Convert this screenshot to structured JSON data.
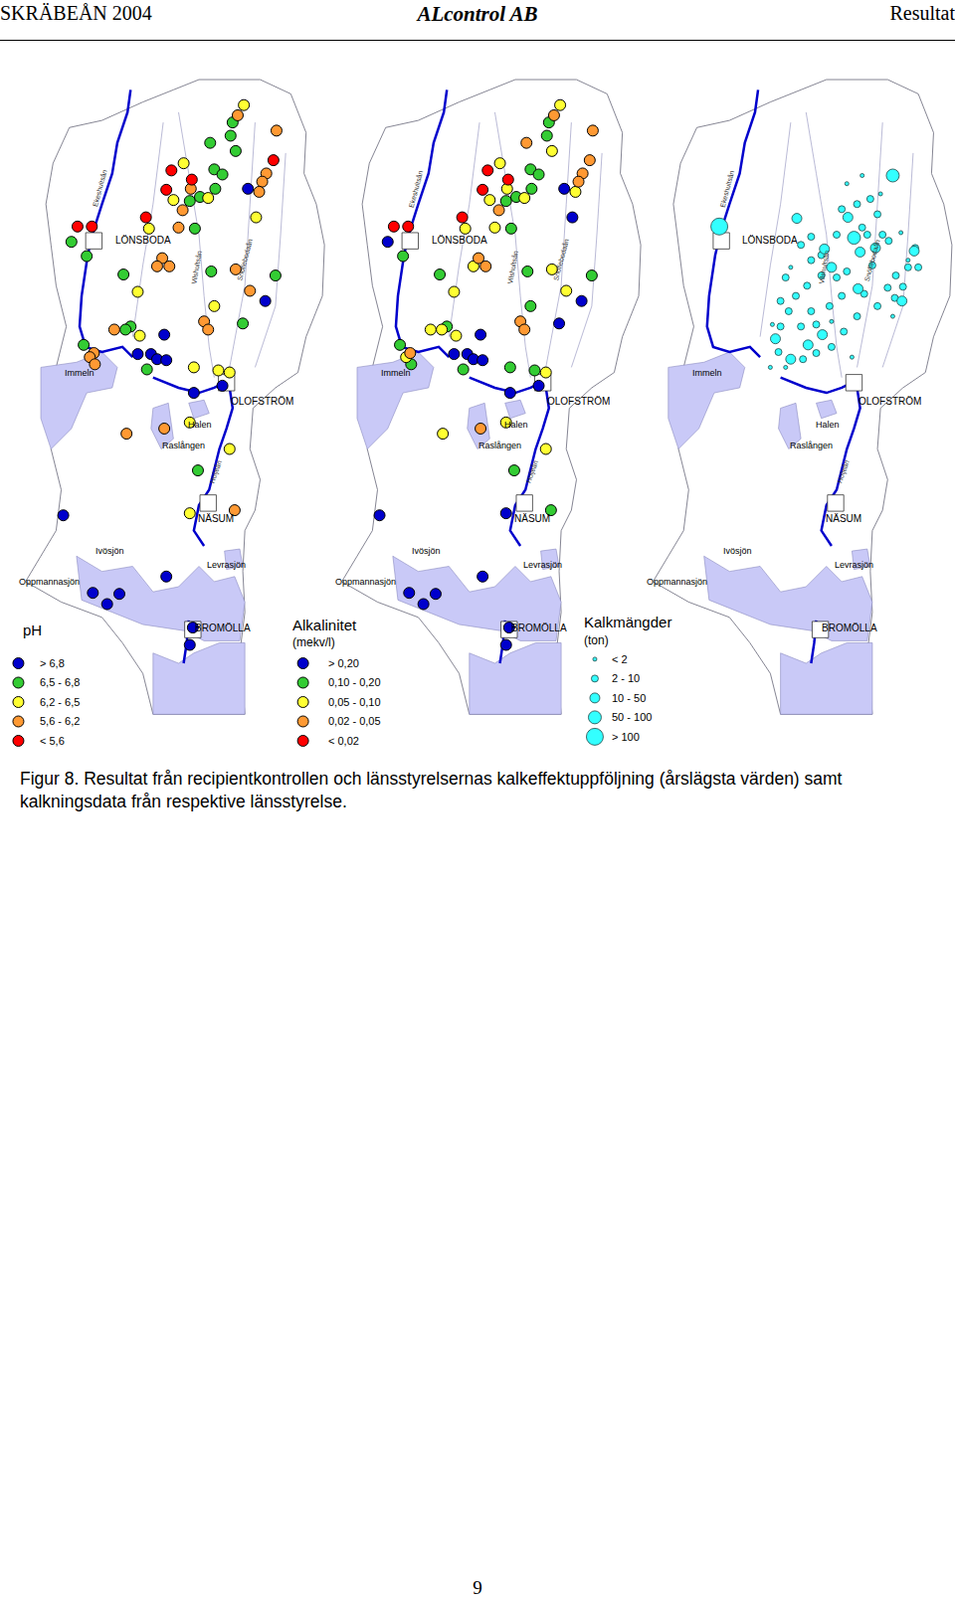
{
  "header": {
    "left": "SKRÄBEÅN 2004",
    "center": "ALcontrol AB",
    "right": "Resultat"
  },
  "map": {
    "xlim": [
      25,
      320
    ],
    "ylim": [
      720,
      60
    ],
    "places": [
      "LÖNSBODA",
      "OLOFSTRÖM",
      "NÄSUM",
      "BROMÖLLA",
      "Immeln",
      "Halen",
      "Raslången",
      "Ivösjön",
      "Levrasjön",
      "Oppmannasjön"
    ],
    "rivers": [
      "Ekeshultsån",
      "Vilshultsån",
      "Snöflebodaån",
      "Holjeån"
    ]
  },
  "chart_data": [
    {
      "type": "scatter",
      "title": "pH",
      "marker": "circle",
      "series": [
        {
          "name": "> 6,8",
          "color": "#0000cc",
          "x": [
            243,
            260,
            161,
            135,
            148,
            154,
            163,
            218,
            190,
            62,
            163,
            91,
            117,
            105,
            189,
            186
          ],
          "y": [
            185,
            295,
            328,
            347,
            347,
            352,
            353,
            378,
            385,
            505,
            565,
            581,
            582,
            592,
            615,
            632
          ]
        },
        {
          "name": "6,5 - 6,8",
          "color": "#33cc33",
          "x": [
            228,
            226,
            206,
            231,
            210,
            218,
            211,
            186,
            196,
            191,
            70,
            85,
            207,
            270,
            121,
            238,
            128,
            123,
            82,
            144,
            194
          ],
          "y": [
            120,
            133,
            140,
            148,
            166,
            171,
            185,
            197,
            193,
            224,
            237,
            251,
            266,
            270,
            269,
            317,
            320,
            323,
            338,
            362,
            461
          ]
        },
        {
          "name": "6,2 - 6,5",
          "color": "#ffff33",
          "x": [
            239,
            180,
            170,
            204,
            146,
            251,
            135,
            210,
            137,
            190,
            214,
            225,
            186,
            225,
            186
          ],
          "y": [
            103,
            160,
            196,
            194,
            224,
            213,
            286,
            300,
            329,
            360,
            363,
            365,
            414,
            440,
            503
          ]
        },
        {
          "name": "5,6 - 6,2",
          "color": "#ff9933",
          "x": [
            233,
            271,
            261,
            257,
            187,
            254,
            179,
            175,
            159,
            166,
            154,
            231,
            245,
            112,
            200,
            204,
            92,
            88,
            93,
            124,
            161,
            230
          ],
          "y": [
            113,
            128,
            170,
            178,
            185,
            188,
            206,
            223,
            253,
            261,
            261,
            264,
            285,
            323,
            315,
            323,
            346,
            350,
            357,
            425,
            420,
            500
          ]
        },
        {
          "name": "< 5,6",
          "color": "#ff0000",
          "x": [
            268,
            168,
            188,
            163,
            143,
            76,
            90
          ],
          "y": [
            157,
            167,
            176,
            186,
            213,
            222,
            222
          ]
        }
      ]
    },
    {
      "type": "scatter",
      "title": "Alkalinitet",
      "unit": "(mekv/l)",
      "marker": "circle",
      "series": [
        {
          "name": "> 0,20",
          "color": "#0000cc",
          "x": [
            243,
            251,
            70,
            260,
            238,
            161,
            135,
            148,
            154,
            163,
            218,
            190,
            186,
            62,
            163,
            91,
            117,
            105,
            189,
            186
          ],
          "y": [
            185,
            213,
            237,
            295,
            317,
            328,
            347,
            347,
            352,
            353,
            378,
            385,
            503,
            505,
            565,
            581,
            582,
            592,
            615,
            632
          ]
        },
        {
          "name": "0,10 - 0,20",
          "color": "#33cc33",
          "x": [
            228,
            226,
            210,
            218,
            211,
            186,
            196,
            191,
            85,
            207,
            270,
            121,
            210,
            128,
            82,
            93,
            144,
            190,
            214,
            194,
            230
          ],
          "y": [
            120,
            133,
            166,
            171,
            185,
            197,
            193,
            224,
            251,
            266,
            270,
            269,
            300,
            320,
            338,
            357,
            362,
            360,
            363,
            461,
            500
          ]
        },
        {
          "name": "0,05 - 0,10",
          "color": "#ffff33",
          "x": [
            239,
            231,
            180,
            187,
            254,
            170,
            204,
            146,
            175,
            154,
            231,
            135,
            245,
            112,
            123,
            137,
            88,
            225,
            124,
            186,
            225
          ],
          "y": [
            103,
            148,
            160,
            185,
            188,
            196,
            194,
            224,
            223,
            261,
            264,
            286,
            285,
            323,
            323,
            329,
            350,
            365,
            425,
            414,
            440
          ]
        },
        {
          "name": "0,02 - 0,05",
          "color": "#ff9933",
          "x": [
            233,
            271,
            206,
            268,
            261,
            257,
            179,
            159,
            166,
            200,
            204,
            92,
            161
          ],
          "y": [
            113,
            128,
            140,
            157,
            170,
            178,
            206,
            253,
            261,
            315,
            323,
            346,
            420
          ]
        },
        {
          "name": "< 0,02",
          "color": "#ff0000",
          "x": [
            168,
            188,
            163,
            143,
            76,
            90
          ],
          "y": [
            167,
            176,
            186,
            213,
            222,
            222
          ]
        }
      ]
    },
    {
      "type": "bubble",
      "title": "Kalkmängder",
      "unit": "(ton)",
      "marker": "circle",
      "series": [
        {
          "name": "< 2",
          "color": "#33ffff",
          "x": [
            230,
            248,
            215,
            275,
            268,
            160,
            142,
            200,
            260,
            155,
            140,
            220
          ],
          "y": [
            172,
            190,
            180,
            255,
            228,
            262,
            318,
            315,
            310,
            360,
            360,
            350
          ]
        },
        {
          "name": "2 - 10",
          "color": "#33ffff",
          "x": [
            230,
            235,
            205,
            180,
            170,
            250,
            256,
            282,
            275,
            263,
            240,
            215,
            205,
            190,
            176,
            165,
            150,
            158,
            180,
            198,
            210,
            232,
            255,
            270,
            285,
            170,
            185,
            150,
            148,
            172,
            185,
            200,
            212,
            225,
            245,
            262,
            155,
            225,
            238,
            245,
            210,
            180,
            190
          ],
          "y": [
            223,
            230,
            230,
            232,
            240,
            230,
            236,
            243,
            262,
            270,
            260,
            266,
            272,
            270,
            280,
            290,
            295,
            305,
            305,
            300,
            290,
            288,
            282,
            281,
            262,
            320,
            318,
            320,
            345,
            352,
            346,
            340,
            325,
            310,
            300,
            292,
            272,
            200,
            195,
            210,
            205,
            255,
            250
          ]
        },
        {
          "name": "10 - 50",
          "color": "#33ffff",
          "x": [
            216,
            193,
            228,
            243,
            269,
            191,
            177,
            160,
            226,
            166,
            145,
            200,
            281
          ],
          "y": [
            213,
            244,
            247,
            243,
            295,
            328,
            338,
            352,
            283,
            214,
            332,
            262,
            246
          ]
        },
        {
          "name": "50 - 100",
          "color": "#33ffff",
          "x": [
            260,
            222
          ],
          "y": [
            172,
            233
          ]
        },
        {
          "name": "> 100",
          "color": "#33ffff",
          "x": [
            90
          ],
          "y": [
            222
          ]
        }
      ]
    }
  ],
  "caption": "Figur 8. Resultat från recipientkontrollen och länsstyrelsernas kalkeffektuppföljning (årslägsta värden) samt kalkningsdata från respektive länsstyrelse.",
  "page_number": "9"
}
